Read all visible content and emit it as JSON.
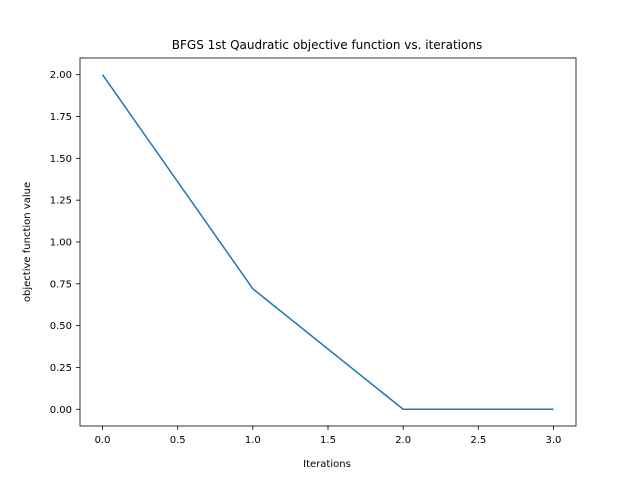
{
  "chart_data": {
    "type": "line",
    "title": "BFGS 1st Qaudratic objective function vs. iterations",
    "xlabel": "Iterations",
    "ylabel": "objective function value",
    "x": [
      0,
      1,
      2,
      3
    ],
    "series": [
      {
        "values": [
          2.0,
          0.72,
          0.0,
          0.0
        ],
        "color": "#1f77b4"
      }
    ],
    "xlim": [
      -0.15,
      3.15
    ],
    "ylim": [
      -0.1,
      2.1
    ],
    "xticks": [
      0.0,
      0.5,
      1.0,
      1.5,
      2.0,
      2.5,
      3.0
    ],
    "xtick_labels": [
      "0.0",
      "0.5",
      "1.0",
      "1.5",
      "2.0",
      "2.5",
      "3.0"
    ],
    "yticks": [
      0.0,
      0.25,
      0.5,
      0.75,
      1.0,
      1.25,
      1.5,
      1.75,
      2.0
    ],
    "ytick_labels": [
      "0.00",
      "0.25",
      "0.50",
      "0.75",
      "1.00",
      "1.25",
      "1.50",
      "1.75",
      "2.00"
    ],
    "grid": false
  }
}
